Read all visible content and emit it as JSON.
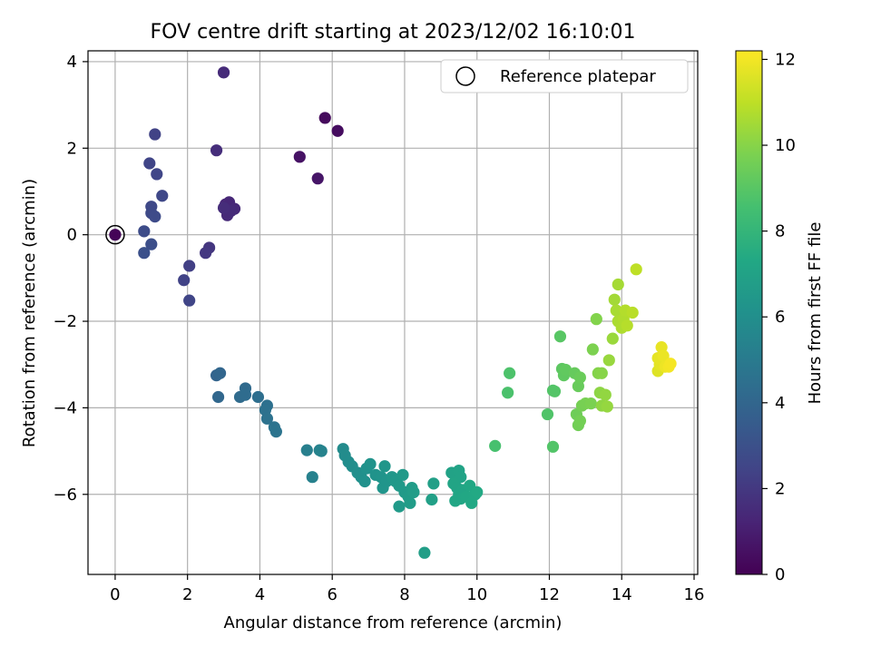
{
  "chart_data": {
    "type": "scatter",
    "title": "FOV centre drift starting at 2023/12/02 16:10:01",
    "xlabel": "Angular distance from reference (arcmin)",
    "ylabel": "Rotation from reference (arcmin)",
    "xlim": [
      -0.75,
      16.1
    ],
    "ylim": [
      -7.85,
      4.25
    ],
    "xticks": [
      0,
      2,
      4,
      6,
      8,
      10,
      12,
      14,
      16
    ],
    "yticks": [
      -6,
      -4,
      -2,
      0,
      2,
      4
    ],
    "xtick_labels": [
      "0",
      "2",
      "4",
      "6",
      "8",
      "10",
      "12",
      "14",
      "16"
    ],
    "ytick_labels": [
      "−6",
      "−4",
      "−2",
      "0",
      "2",
      "4"
    ],
    "grid": true,
    "legend": {
      "position": "top-right",
      "entries": [
        "Reference platepar"
      ]
    },
    "reference_point": {
      "x": 0,
      "y": 0
    },
    "colorbar": {
      "label": "Hours from first FF file",
      "colormap": "viridis",
      "range": [
        0,
        12.2
      ],
      "ticks": [
        0,
        2,
        4,
        6,
        8,
        10,
        12
      ],
      "tick_labels": [
        "0",
        "2",
        "4",
        "6",
        "8",
        "10",
        "12"
      ]
    },
    "series": [
      {
        "columns": [
          "x",
          "y",
          "hours"
        ],
        "points": [
          [
            0,
            0,
            0.1
          ],
          [
            5.8,
            2.7,
            0.3
          ],
          [
            6.15,
            2.4,
            0.4
          ],
          [
            5.1,
            1.8,
            0.6
          ],
          [
            5.6,
            1.3,
            0.7
          ],
          [
            3.0,
            3.75,
            1.5
          ],
          [
            2.8,
            1.95,
            1.6
          ],
          [
            3.05,
            0.7,
            1.3
          ],
          [
            3.15,
            0.75,
            1.35
          ],
          [
            3.3,
            0.6,
            1.4
          ],
          [
            3.1,
            0.45,
            1.45
          ],
          [
            3.2,
            0.55,
            1.5
          ],
          [
            3.0,
            0.62,
            1.55
          ],
          [
            2.6,
            -0.3,
            1.9
          ],
          [
            2.5,
            -0.42,
            2.0
          ],
          [
            2.05,
            -0.72,
            2.3
          ],
          [
            1.9,
            -1.05,
            2.4
          ],
          [
            2.05,
            -1.52,
            2.5
          ],
          [
            1.1,
            2.32,
            2.4
          ],
          [
            0.95,
            1.65,
            2.5
          ],
          [
            1.15,
            1.4,
            2.55
          ],
          [
            1.3,
            0.9,
            2.6
          ],
          [
            1.0,
            0.65,
            2.65
          ],
          [
            1.0,
            0.5,
            2.7
          ],
          [
            1.1,
            0.42,
            2.75
          ],
          [
            0.8,
            0.08,
            2.8
          ],
          [
            1.0,
            -0.22,
            2.9
          ],
          [
            0.8,
            -0.42,
            3.0
          ],
          [
            2.8,
            -3.25,
            3.9
          ],
          [
            2.9,
            -3.2,
            4.0
          ],
          [
            2.85,
            -3.75,
            4.05
          ],
          [
            3.6,
            -3.55,
            4.2
          ],
          [
            3.45,
            -3.75,
            4.25
          ],
          [
            3.6,
            -3.7,
            4.3
          ],
          [
            3.95,
            -3.75,
            4.4
          ],
          [
            4.2,
            -3.95,
            4.5
          ],
          [
            4.15,
            -4.05,
            4.55
          ],
          [
            4.2,
            -4.25,
            4.6
          ],
          [
            4.4,
            -4.45,
            4.65
          ],
          [
            4.45,
            -4.55,
            4.7
          ],
          [
            5.3,
            -4.98,
            5.2
          ],
          [
            5.45,
            -5.6,
            5.3
          ],
          [
            5.65,
            -4.98,
            5.35
          ],
          [
            5.7,
            -5.0,
            5.4
          ],
          [
            6.3,
            -4.95,
            5.8
          ],
          [
            6.35,
            -5.1,
            5.85
          ],
          [
            6.45,
            -5.25,
            5.9
          ],
          [
            6.55,
            -5.35,
            5.95
          ],
          [
            6.7,
            -5.5,
            6.0
          ],
          [
            6.8,
            -5.6,
            6.05
          ],
          [
            6.9,
            -5.7,
            6.1
          ],
          [
            6.95,
            -5.4,
            6.15
          ],
          [
            7.05,
            -5.3,
            6.2
          ],
          [
            7.2,
            -5.55,
            6.2
          ],
          [
            7.35,
            -5.6,
            6.25
          ],
          [
            7.4,
            -5.85,
            6.3
          ],
          [
            7.5,
            -5.7,
            6.3
          ],
          [
            7.45,
            -5.35,
            6.35
          ],
          [
            7.65,
            -5.6,
            6.4
          ],
          [
            7.75,
            -5.7,
            6.45
          ],
          [
            7.85,
            -5.8,
            6.5
          ],
          [
            7.95,
            -5.55,
            6.55
          ],
          [
            7.85,
            -6.28,
            6.6
          ],
          [
            8.0,
            -5.95,
            6.6
          ],
          [
            8.1,
            -6.05,
            6.65
          ],
          [
            8.15,
            -6.2,
            6.7
          ],
          [
            8.2,
            -5.85,
            6.7
          ],
          [
            8.25,
            -5.95,
            6.75
          ],
          [
            8.55,
            -7.35,
            6.8
          ],
          [
            8.8,
            -5.75,
            6.85
          ],
          [
            8.75,
            -6.12,
            6.9
          ],
          [
            9.3,
            -5.5,
            7.0
          ],
          [
            9.4,
            -5.55,
            7.0
          ],
          [
            9.5,
            -5.45,
            7.05
          ],
          [
            9.55,
            -5.6,
            7.05
          ],
          [
            9.35,
            -5.75,
            7.1
          ],
          [
            9.45,
            -5.85,
            7.1
          ],
          [
            9.6,
            -5.9,
            7.15
          ],
          [
            9.5,
            -6.0,
            7.15
          ],
          [
            9.4,
            -6.15,
            7.2
          ],
          [
            9.55,
            -6.1,
            7.2
          ],
          [
            9.7,
            -6.05,
            7.25
          ],
          [
            9.8,
            -5.8,
            7.25
          ],
          [
            9.85,
            -6.2,
            7.3
          ],
          [
            9.95,
            -6.0,
            7.3
          ],
          [
            10.0,
            -5.95,
            7.35
          ],
          [
            10.5,
            -4.88,
            8.6
          ],
          [
            10.85,
            -3.65,
            8.7
          ],
          [
            10.9,
            -3.2,
            8.75
          ],
          [
            11.95,
            -4.15,
            8.8
          ],
          [
            12.1,
            -4.9,
            8.85
          ],
          [
            12.1,
            -3.6,
            8.85
          ],
          [
            12.15,
            -3.62,
            8.9
          ],
          [
            12.3,
            -2.35,
            9.0
          ],
          [
            12.35,
            -3.1,
            9.1
          ],
          [
            12.4,
            -3.25,
            9.15
          ],
          [
            12.45,
            -3.12,
            9.2
          ],
          [
            12.7,
            -3.2,
            9.3
          ],
          [
            12.8,
            -3.5,
            9.35
          ],
          [
            12.85,
            -3.3,
            9.4
          ],
          [
            12.75,
            -4.15,
            9.5
          ],
          [
            12.8,
            -4.4,
            9.55
          ],
          [
            12.85,
            -4.3,
            9.6
          ],
          [
            12.9,
            -3.95,
            9.65
          ],
          [
            13.0,
            -3.9,
            9.7
          ],
          [
            13.15,
            -3.9,
            9.75
          ],
          [
            13.2,
            -2.65,
            9.8
          ],
          [
            13.3,
            -1.95,
            9.9
          ],
          [
            13.35,
            -3.2,
            9.95
          ],
          [
            13.45,
            -3.2,
            10.0
          ],
          [
            13.4,
            -3.65,
            10.1
          ],
          [
            13.45,
            -3.95,
            10.15
          ],
          [
            13.55,
            -3.7,
            10.2
          ],
          [
            13.6,
            -3.97,
            10.25
          ],
          [
            13.65,
            -2.9,
            10.3
          ],
          [
            13.75,
            -2.4,
            10.35
          ],
          [
            13.8,
            -1.5,
            10.5
          ],
          [
            13.9,
            -1.15,
            10.55
          ],
          [
            13.85,
            -1.75,
            10.6
          ],
          [
            13.9,
            -2.0,
            10.65
          ],
          [
            14.0,
            -2.15,
            10.7
          ],
          [
            14.05,
            -1.95,
            10.75
          ],
          [
            14.1,
            -1.75,
            10.8
          ],
          [
            14.15,
            -2.1,
            10.85
          ],
          [
            14.3,
            -1.8,
            10.9
          ],
          [
            14.4,
            -0.8,
            11.0
          ],
          [
            15.0,
            -3.15,
            11.6
          ],
          [
            15.05,
            -3.0,
            11.7
          ],
          [
            15.0,
            -2.85,
            11.75
          ],
          [
            15.1,
            -2.6,
            11.8
          ],
          [
            15.15,
            -2.8,
            11.85
          ],
          [
            15.2,
            -3.05,
            11.9
          ],
          [
            15.3,
            -3.05,
            12.0
          ],
          [
            15.35,
            -2.98,
            12.05
          ]
        ]
      }
    ]
  }
}
